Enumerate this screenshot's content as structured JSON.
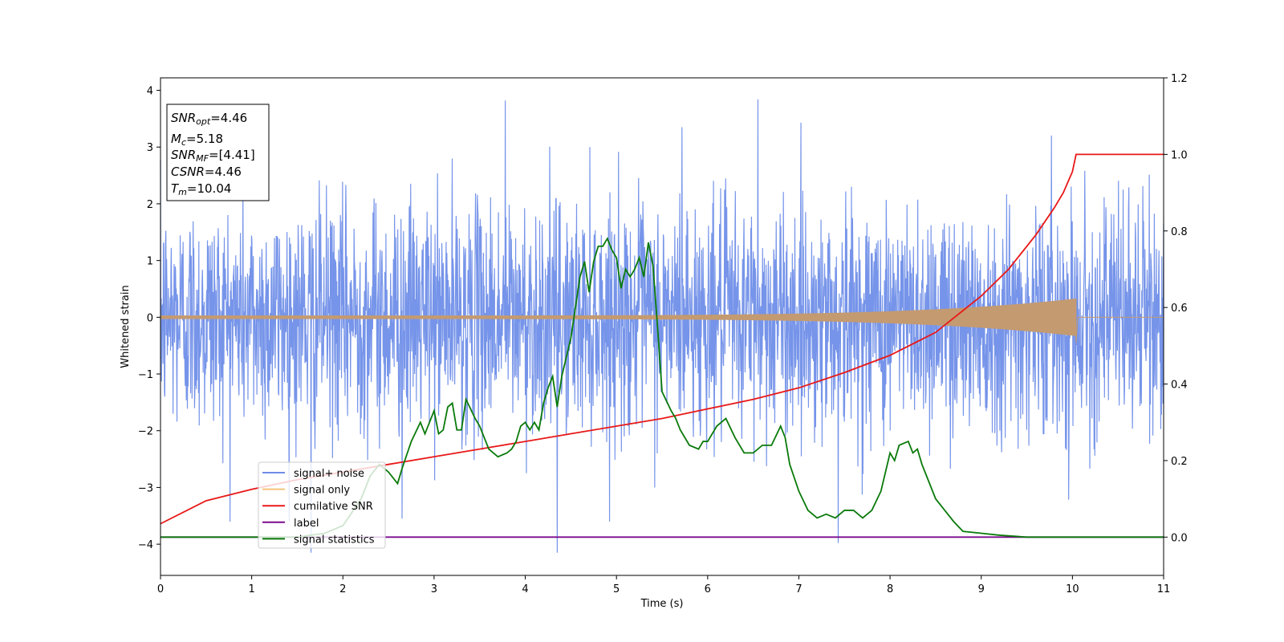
{
  "chart_data": {
    "type": "line",
    "title": "",
    "xlabel": "Time (s)",
    "ylabel": "Whitened strain",
    "xlim": [
      0,
      11
    ],
    "ylim": [
      -4.55,
      4.22
    ],
    "y2lim": [
      -0.1,
      1.2
    ],
    "xticks": [
      "0",
      "1",
      "2",
      "3",
      "4",
      "5",
      "6",
      "7",
      "8",
      "9",
      "10",
      "11"
    ],
    "yticks": [
      "−4",
      "−3",
      "−2",
      "−1",
      "0",
      "1",
      "2",
      "3",
      "4"
    ],
    "y2ticks": [
      "0.0",
      "0.2",
      "0.4",
      "0.6",
      "0.8",
      "1.0",
      "1.2"
    ],
    "grid": false,
    "legend_position": "lower-left",
    "annotation": {
      "lines": [
        {
          "sym": "SNR",
          "sub": "opt",
          "value": "=4.46"
        },
        {
          "sym": "M",
          "sub": "c",
          "value": "=5.18"
        },
        {
          "sym": "SNR",
          "sub": "MF",
          "value": "=[4.41]"
        },
        {
          "sym": "CSNR",
          "sub": "",
          "value": "=4.46"
        },
        {
          "sym": "T",
          "sub": "m",
          "value": "=10.04"
        }
      ]
    },
    "noise": {
      "t_start": 0,
      "t_end": 11,
      "sigma": 1.0,
      "spikes": [
        [
          1.65,
          -4.15
        ],
        [
          3.78,
          3.82
        ],
        [
          4.35,
          -4.15
        ],
        [
          6.55,
          3.84
        ],
        [
          7.43,
          -3.98
        ],
        [
          2.65,
          -3.55
        ],
        [
          5.72,
          3.35
        ]
      ]
    },
    "chirp": {
      "t_start": 0,
      "t_merge": 10.04,
      "amp_start": 0.03,
      "amp_merge": 0.33
    },
    "series": [
      {
        "name": "signal+ noise",
        "axis": "left",
        "color": "#6f8ee8"
      },
      {
        "name": "signal only",
        "axis": "left",
        "color": "#f5c27a"
      },
      {
        "name": "cumilative SNR",
        "axis": "right",
        "color": "#e81818",
        "x": [
          0,
          0.5,
          1,
          1.5,
          2,
          2.5,
          3,
          3.5,
          4,
          4.5,
          5,
          5.5,
          6,
          6.5,
          7,
          7.5,
          8,
          8.5,
          9,
          9.3,
          9.6,
          9.8,
          9.9,
          10.0,
          10.04,
          10.5,
          11
        ],
        "values": [
          0.035,
          0.095,
          0.125,
          0.15,
          0.17,
          0.19,
          0.21,
          0.23,
          0.25,
          0.27,
          0.29,
          0.31,
          0.335,
          0.36,
          0.39,
          0.43,
          0.475,
          0.535,
          0.63,
          0.7,
          0.79,
          0.86,
          0.9,
          0.955,
          1.0,
          1.0,
          1.0
        ]
      },
      {
        "name": "label",
        "axis": "right",
        "color": "#7b0b8e",
        "x": [
          0,
          11
        ],
        "values": [
          0,
          0
        ]
      },
      {
        "name": "signal statistics",
        "axis": "right",
        "color": "#0a7a0a",
        "x": [
          0,
          0.5,
          1,
          1.5,
          1.8,
          2.0,
          2.2,
          2.3,
          2.4,
          2.5,
          2.6,
          2.65,
          2.75,
          2.85,
          2.9,
          2.95,
          3.0,
          3.05,
          3.1,
          3.15,
          3.2,
          3.25,
          3.3,
          3.35,
          3.45,
          3.5,
          3.6,
          3.7,
          3.8,
          3.85,
          3.9,
          3.95,
          4.0,
          4.05,
          4.1,
          4.15,
          4.2,
          4.25,
          4.3,
          4.35,
          4.4,
          4.5,
          4.55,
          4.6,
          4.65,
          4.7,
          4.75,
          4.8,
          4.85,
          4.9,
          4.95,
          5.0,
          5.05,
          5.1,
          5.15,
          5.2,
          5.25,
          5.3,
          5.35,
          5.4,
          5.45,
          5.5,
          5.6,
          5.65,
          5.7,
          5.8,
          5.9,
          5.95,
          6.0,
          6.1,
          6.2,
          6.3,
          6.4,
          6.5,
          6.6,
          6.7,
          6.8,
          6.85,
          6.9,
          7.0,
          7.1,
          7.2,
          7.3,
          7.4,
          7.5,
          7.6,
          7.7,
          7.75,
          7.8,
          7.9,
          8.0,
          8.05,
          8.1,
          8.2,
          8.25,
          8.3,
          8.35,
          8.4,
          8.5,
          8.6,
          8.7,
          8.8,
          9.0,
          9.2,
          9.5,
          10.0,
          10.5,
          11.0
        ],
        "values": [
          0.0,
          0.0,
          0.0,
          0.0,
          0.01,
          0.03,
          0.1,
          0.16,
          0.19,
          0.17,
          0.14,
          0.18,
          0.25,
          0.3,
          0.27,
          0.3,
          0.33,
          0.27,
          0.28,
          0.34,
          0.35,
          0.28,
          0.28,
          0.36,
          0.31,
          0.29,
          0.23,
          0.21,
          0.22,
          0.23,
          0.25,
          0.29,
          0.3,
          0.28,
          0.3,
          0.28,
          0.35,
          0.39,
          0.42,
          0.34,
          0.42,
          0.52,
          0.6,
          0.68,
          0.72,
          0.64,
          0.72,
          0.76,
          0.76,
          0.78,
          0.75,
          0.73,
          0.65,
          0.7,
          0.68,
          0.7,
          0.73,
          0.68,
          0.77,
          0.71,
          0.55,
          0.38,
          0.33,
          0.31,
          0.28,
          0.24,
          0.23,
          0.25,
          0.25,
          0.29,
          0.31,
          0.26,
          0.22,
          0.22,
          0.24,
          0.24,
          0.29,
          0.26,
          0.19,
          0.12,
          0.07,
          0.05,
          0.06,
          0.05,
          0.07,
          0.07,
          0.05,
          0.06,
          0.07,
          0.12,
          0.22,
          0.2,
          0.24,
          0.25,
          0.22,
          0.23,
          0.19,
          0.16,
          0.1,
          0.07,
          0.04,
          0.015,
          0.01,
          0.005,
          0.0,
          0.0,
          0.0,
          0.0
        ]
      }
    ]
  }
}
